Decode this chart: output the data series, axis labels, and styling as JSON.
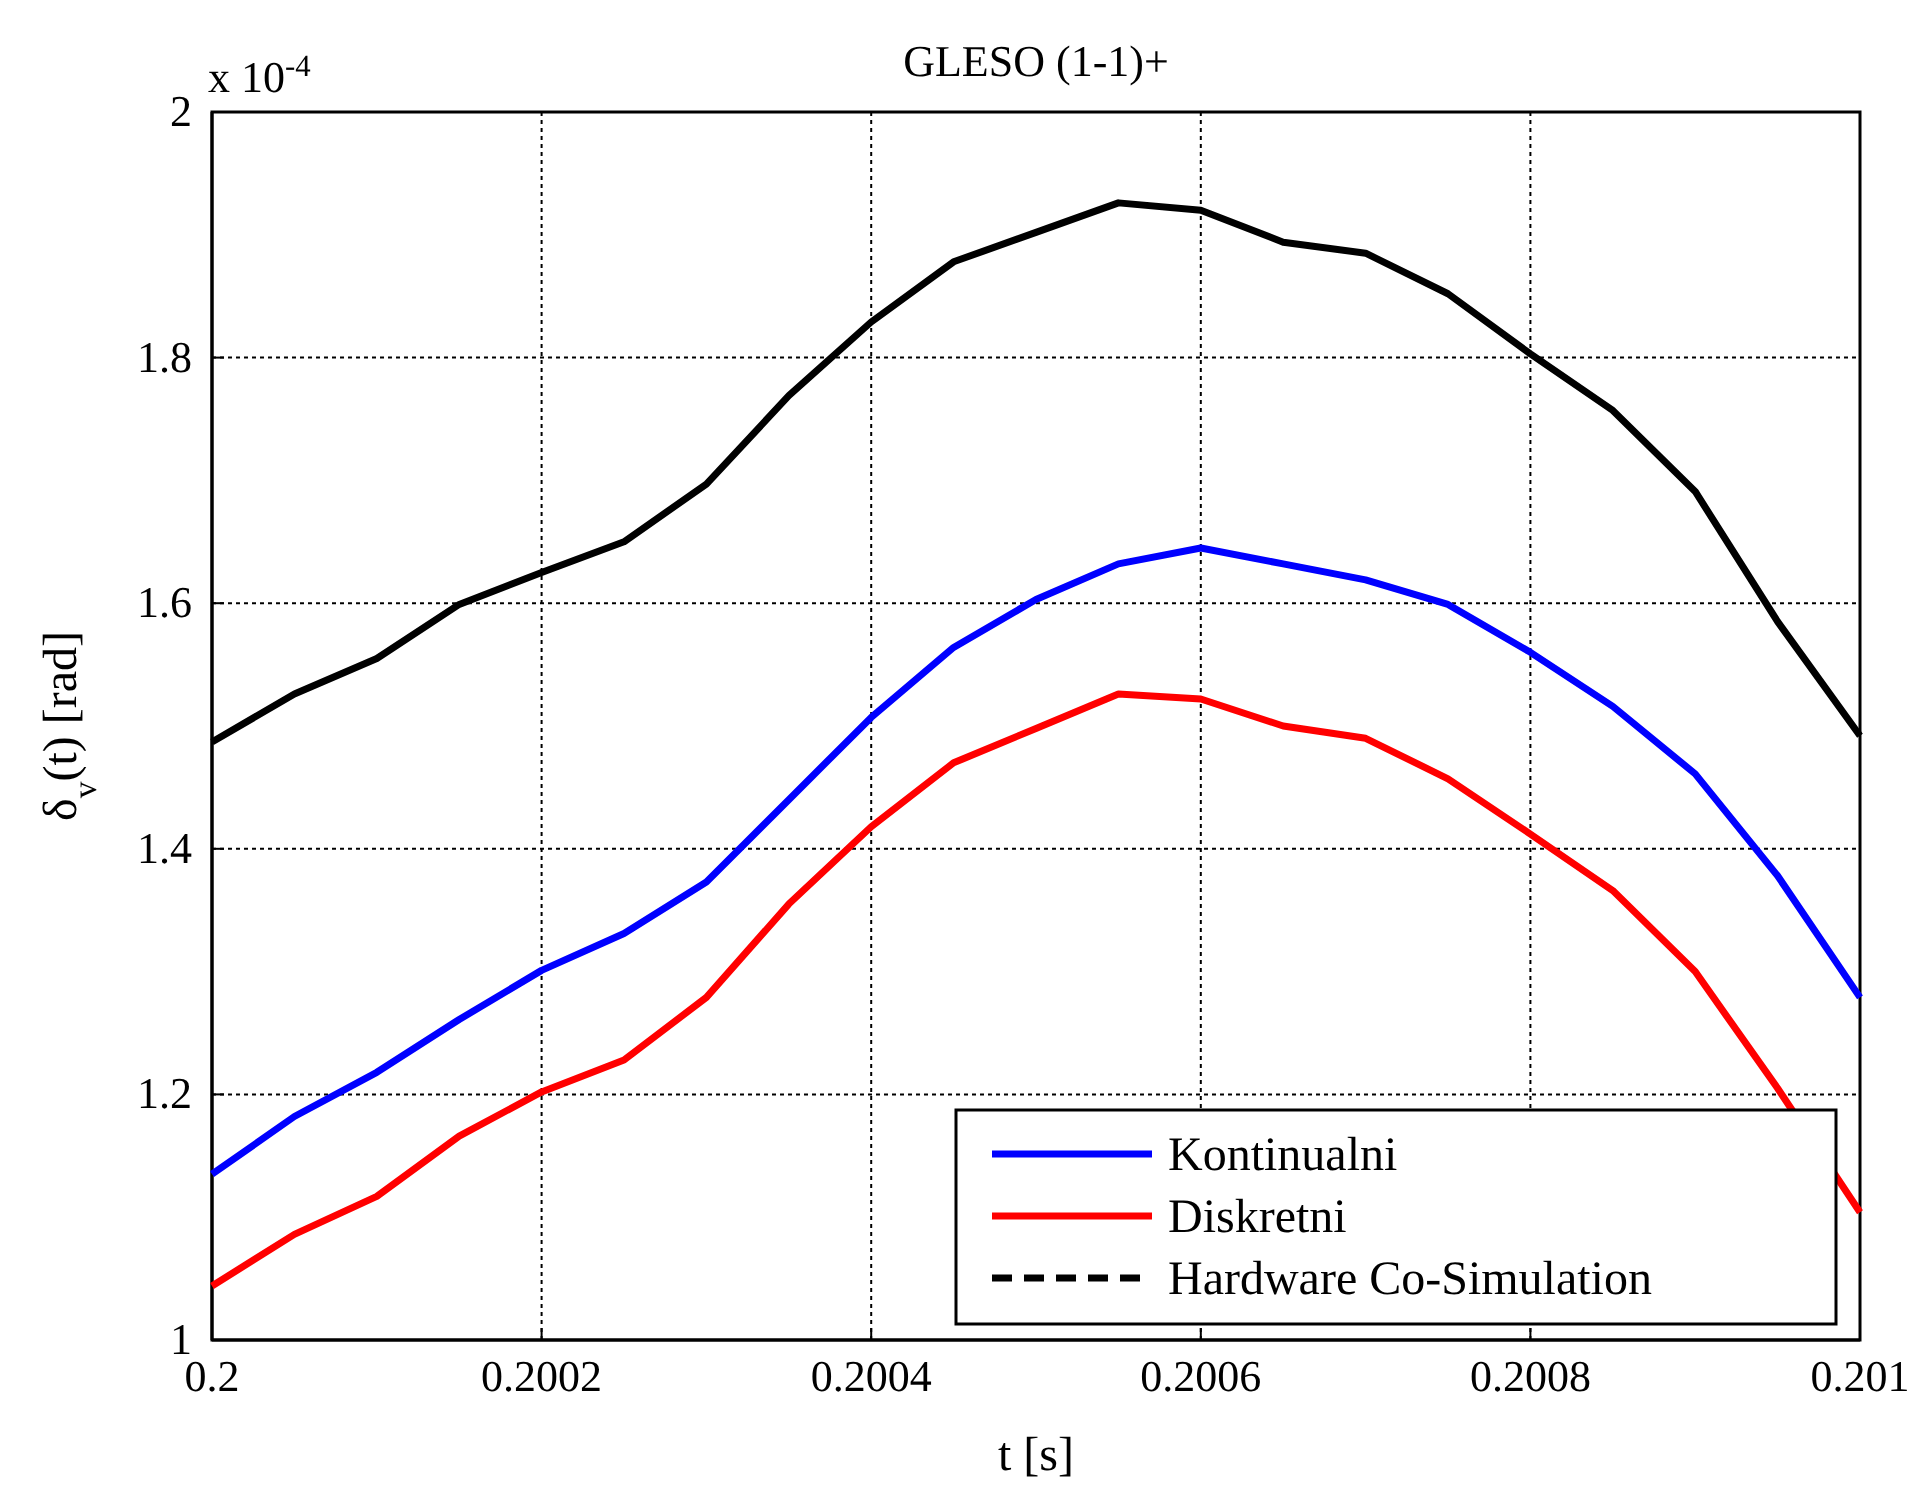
{
  "chart_data": {
    "type": "line",
    "title": "GLESO (1-1)+",
    "xlabel": "t [s]",
    "ylabel": "δ$_{v}$(t) [rad]",
    "annotations": [
      "x 10$^{-4}$"
    ],
    "x": [
      0.2,
      0.20005,
      0.2001,
      0.20015,
      0.2002,
      0.20025,
      0.2003,
      0.20035,
      0.2004,
      0.20045,
      0.2005,
      0.20055,
      0.2006,
      0.20065,
      0.2007,
      0.20075,
      0.2008,
      0.20085,
      0.2009,
      0.20095,
      0.201
    ],
    "series": [
      {
        "name": "Kontinualni",
        "color": "#0000ff",
        "values": [
          1.135,
          1.182,
          1.218,
          1.261,
          1.301,
          1.331,
          1.373,
          1.44,
          1.507,
          1.564,
          1.603,
          1.632,
          1.645,
          1.632,
          1.619,
          1.599,
          1.56,
          1.516,
          1.461,
          1.378,
          1.279
        ]
      },
      {
        "name": "Diskretni",
        "color": "#ff0000",
        "values": [
          1.044,
          1.086,
          1.117,
          1.166,
          1.202,
          1.228,
          1.279,
          1.355,
          1.418,
          1.47,
          1.498,
          1.526,
          1.522,
          1.5,
          1.49,
          1.457,
          1.412,
          1.366,
          1.3,
          1.205,
          1.104
        ]
      },
      {
        "color": "#000000",
        "values": [
          1.487,
          1.526,
          1.555,
          1.599,
          1.625,
          1.65,
          1.697,
          1.769,
          1.829,
          1.878,
          1.902,
          1.926,
          1.92,
          1.894,
          1.885,
          1.852,
          1.803,
          1.757,
          1.691,
          1.585,
          1.492
        ]
      },
      {
        "name": "Hardware Co-Simulation",
        "color": "#000000",
        "line_style": "dashed",
        "values": [
          null,
          null,
          null,
          null,
          null,
          null,
          null,
          null,
          null,
          null,
          null,
          null,
          null,
          null,
          null,
          null,
          null,
          null,
          null,
          null,
          null
        ]
      }
    ],
    "xlim": [
      0.2,
      0.201
    ],
    "xticks": [
      0.2,
      0.2002,
      0.2004,
      0.2006,
      0.2008,
      0.201
    ],
    "ylim": [
      1,
      2
    ],
    "yticks": [
      1,
      1.2,
      1.4,
      1.6,
      1.8,
      2
    ],
    "grid": true,
    "legend": "bottom right",
    "line_style": "solid"
  }
}
